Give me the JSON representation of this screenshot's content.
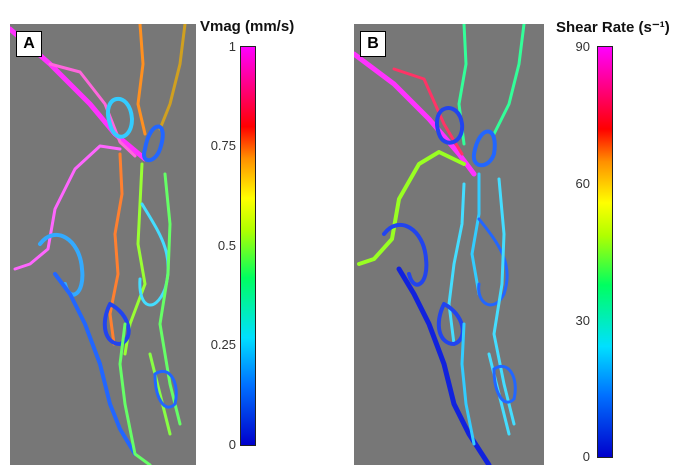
{
  "panels": [
    {
      "label": "A",
      "colorbar_title": "Vmag (mm/s)",
      "ticks": [
        "1",
        "0.75",
        "0.5",
        "0.25",
        "0"
      ]
    },
    {
      "label": "B",
      "colorbar_title": "Shear Rate (s⁻¹)",
      "ticks": [
        "90",
        "60",
        "30",
        "0"
      ]
    }
  ],
  "colors": {
    "background": "#777777",
    "low": "#0000cc",
    "mid": "#00ff60",
    "high": "#ff00ff"
  }
}
